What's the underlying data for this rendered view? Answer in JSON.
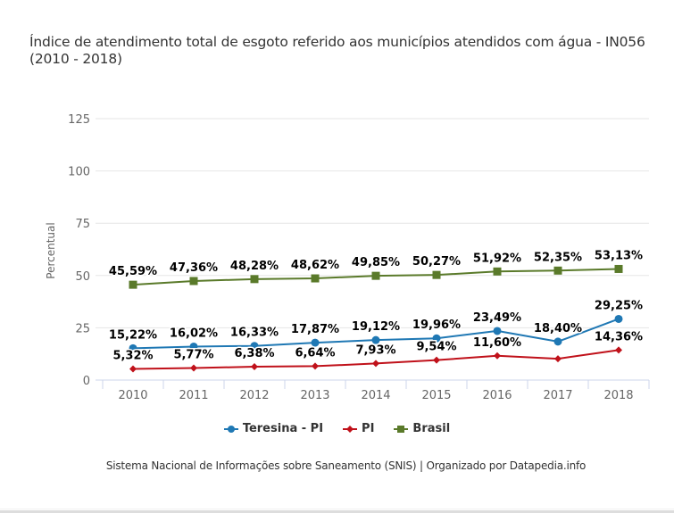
{
  "chart_data": {
    "type": "line",
    "title": "Índice de atendimento total de esgoto referido aos municípios atendidos com água - IN056 (2010 - 2018)",
    "xlabel": "",
    "ylabel": "Percentual",
    "ylim": [
      0,
      125
    ],
    "yticks": [
      "0",
      "25",
      "50",
      "75",
      "100",
      "125"
    ],
    "ytick_values": [
      0,
      25,
      50,
      75,
      100,
      125
    ],
    "grid": true,
    "legend_position": "bottom",
    "categories": [
      "2010",
      "2011",
      "2012",
      "2013",
      "2014",
      "2015",
      "2016",
      "2017",
      "2018"
    ],
    "series": [
      {
        "name": "Teresina - PI",
        "color": "#1f78b4",
        "marker": "circle",
        "values": [
          15.22,
          16.02,
          16.33,
          17.87,
          19.12,
          19.96,
          23.49,
          18.4,
          29.25
        ],
        "labels": [
          "15,22%",
          "16,02%",
          "16,33%",
          "17,87%",
          "19,12%",
          "19,96%",
          "23,49%",
          "18,40%",
          "29,25%"
        ]
      },
      {
        "name": "PI",
        "color": "#c0111a",
        "marker": "diamond",
        "values": [
          5.32,
          5.77,
          6.38,
          6.64,
          7.93,
          9.54,
          11.6,
          10.2,
          14.36
        ],
        "labels": [
          "5,32%",
          "5,77%",
          "6,38%",
          "6,64%",
          "7,93%",
          "9,54%",
          "11,60%",
          "",
          "14,36%"
        ]
      },
      {
        "name": "Brasil",
        "color": "#5a7a2a",
        "marker": "square",
        "values": [
          45.59,
          47.36,
          48.28,
          48.62,
          49.85,
          50.27,
          51.92,
          52.35,
          53.13
        ],
        "labels": [
          "45,59%",
          "47,36%",
          "48,28%",
          "48,62%",
          "49,85%",
          "50,27%",
          "51,92%",
          "52,35%",
          "53,13%"
        ]
      }
    ]
  },
  "legend": {
    "items": [
      {
        "label": "Teresina - PI",
        "color": "#1f78b4",
        "icon": "circle-marker-icon"
      },
      {
        "label": "PI",
        "color": "#c0111a",
        "icon": "diamond-marker-icon"
      },
      {
        "label": "Brasil",
        "color": "#5a7a2a",
        "icon": "square-marker-icon"
      }
    ]
  },
  "source": "Sistema Nacional de Informações sobre Saneamento (SNIS) | Organizado por Datapedia.info"
}
